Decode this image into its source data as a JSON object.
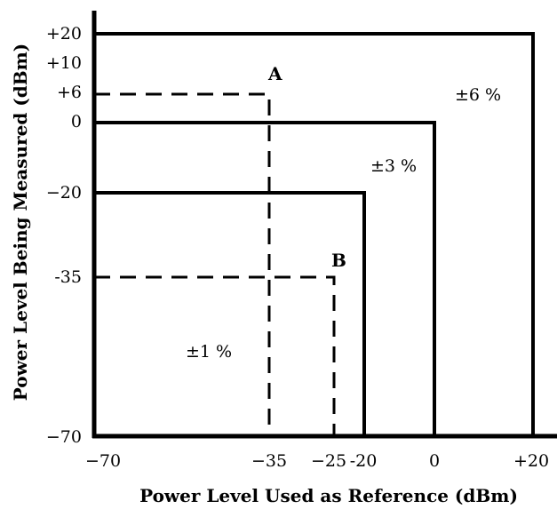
{
  "diagram": {
    "x_axis_title": "Power Level Used as Reference (dBm)",
    "y_axis_title": "Power Level Being Measured (dBm)",
    "x_ticks": [
      "−70",
      "−35",
      "−25",
      "-20",
      "0",
      "+20"
    ],
    "y_ticks": [
      "+20",
      "+10",
      "+6",
      "0",
      "−20",
      "-35",
      "−70"
    ],
    "regions": [
      {
        "label": "±6 %",
        "ref_max_dbm": 20,
        "meas_max_dbm": 20
      },
      {
        "label": "±3 %",
        "ref_max_dbm": 0,
        "meas_max_dbm": 0
      },
      {
        "label": "±1 %",
        "ref_max_dbm": -20,
        "meas_max_dbm": -20
      }
    ],
    "points": [
      {
        "label": "A",
        "ref_dbm": -35,
        "meas_dbm": 6
      },
      {
        "label": "B",
        "ref_dbm": -25,
        "meas_dbm": -35
      }
    ]
  }
}
